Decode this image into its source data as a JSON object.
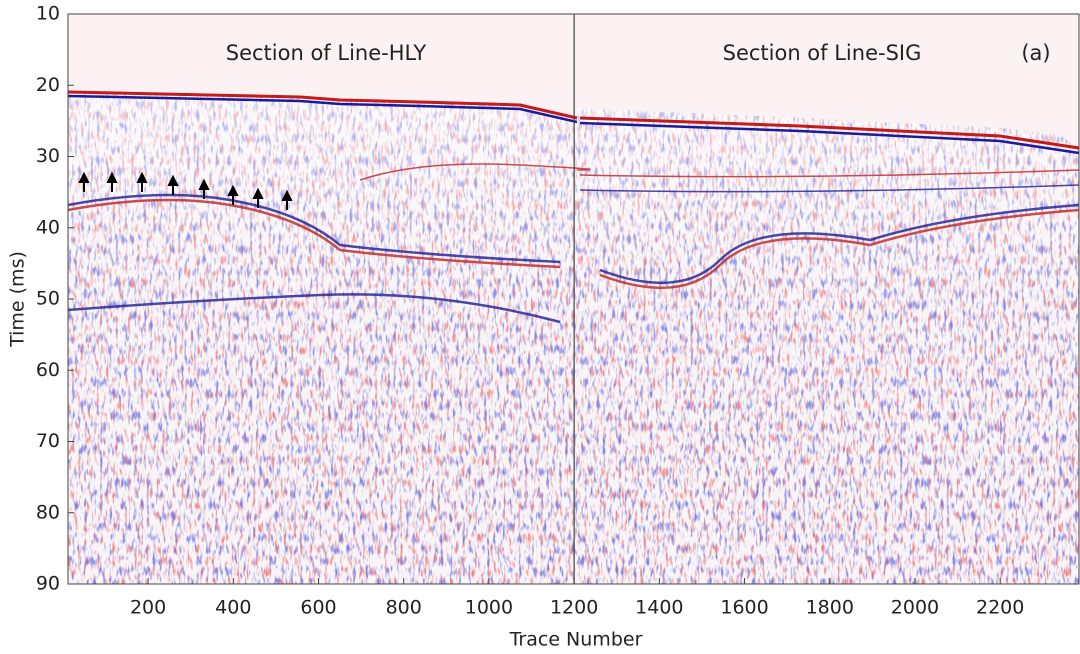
{
  "chart_data": {
    "type": "seismic-section",
    "panel_titles": [
      "Section of Line-HLY",
      "Section of Line-SIG"
    ],
    "annotation": "(a)",
    "x_label": "Trace Number",
    "y_label": "Time (ms)",
    "xlim": [
      12,
      2385
    ],
    "ylim": [
      90,
      10
    ],
    "y_inverted": true,
    "xticks": [
      200,
      400,
      600,
      800,
      1000,
      1200,
      1400,
      1600,
      1800,
      2000,
      2200
    ],
    "yticks": [
      10,
      20,
      30,
      40,
      50,
      60,
      70,
      80,
      90
    ],
    "panel_boundary": 1200
  }
}
